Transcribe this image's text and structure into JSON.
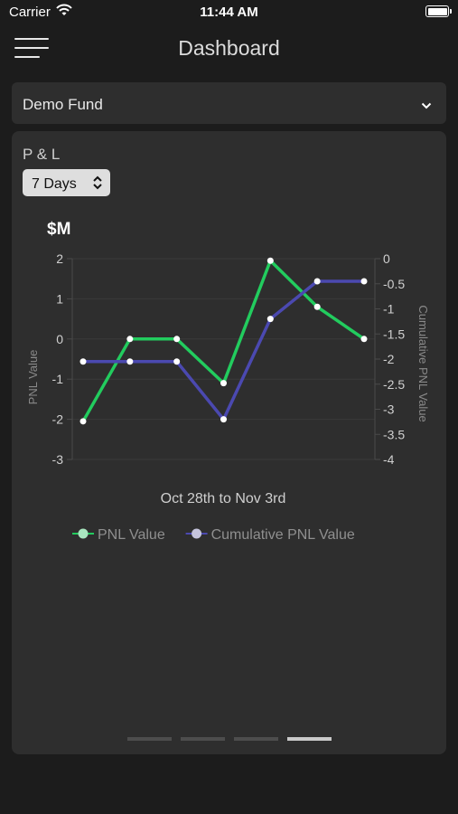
{
  "status_bar": {
    "carrier": "Carrier",
    "time": "11:44 AM"
  },
  "nav": {
    "title": "Dashboard",
    "menu_icon": "hamburger-menu-icon"
  },
  "fund_selector": {
    "value": "Demo Fund",
    "icon": "chevron-down-icon"
  },
  "card": {
    "section_label": "P & L",
    "period_select": {
      "value": "7 Days",
      "icon": "up-down-arrows-icon"
    },
    "unit_label": "$M",
    "pager": {
      "count": 4,
      "active_index": 3
    }
  },
  "chart_data": {
    "type": "line",
    "title": "",
    "xlabel": "Oct 28th to Nov 3rd",
    "x": [
      1,
      2,
      3,
      4,
      5,
      6,
      7
    ],
    "y_left": {
      "label": "PNL Value",
      "ylim": [
        -3,
        2
      ],
      "ticks": [
        "2",
        "1",
        "0",
        "-1",
        "-2",
        "-3"
      ]
    },
    "y_right": {
      "label": "Cumulative PNL Value",
      "ylim": [
        -4,
        0
      ],
      "ticks": [
        "0",
        "-0.5",
        "-1",
        "-1.5",
        "-2",
        "-2.5",
        "-3",
        "-3.5",
        "-4"
      ]
    },
    "series": [
      {
        "name": "PNL Value",
        "axis": "left",
        "color": "#22cc5e",
        "values": [
          -2.05,
          0,
          0,
          -1.1,
          1.95,
          0.8,
          0
        ]
      },
      {
        "name": "Cumulative PNL Value",
        "axis": "right",
        "color": "#4b49b0",
        "values": [
          -2.05,
          -2.05,
          -2.05,
          -3.2,
          -1.2,
          -0.45,
          -0.45
        ]
      }
    ],
    "grid": true,
    "legend": "bottom"
  }
}
